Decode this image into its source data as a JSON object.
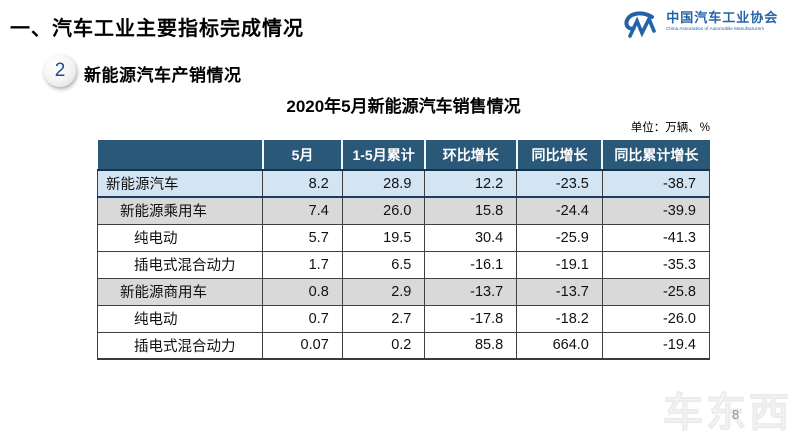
{
  "page": {
    "title": "一、汽车工业主要指标完成情况",
    "section_number": "2",
    "section_title": "新能源汽车产销情况",
    "page_number": "8",
    "watermark": "车东西"
  },
  "logo": {
    "name_cn": "中国汽车工业协会",
    "name_en": "China Association of Automobile Manufacturers",
    "color": "#2563a8"
  },
  "table": {
    "title": "2020年5月新能源汽车销售情况",
    "unit_note": "单位：万辆、%",
    "columns": [
      "",
      "5月",
      "1-5月累计",
      "环比增长",
      "同比增长",
      "同比累计增长"
    ],
    "rows": [
      {
        "label": "新能源汽车",
        "indent": 0,
        "style": "blue",
        "values": [
          "8.2",
          "28.9",
          "12.2",
          "-23.5",
          "-38.7"
        ]
      },
      {
        "label": "新能源乘用车",
        "indent": 1,
        "style": "gray",
        "values": [
          "7.4",
          "26.0",
          "15.8",
          "-24.4",
          "-39.9"
        ]
      },
      {
        "label": "纯电动",
        "indent": 2,
        "style": "white",
        "values": [
          "5.7",
          "19.5",
          "30.4",
          "-25.9",
          "-41.3"
        ]
      },
      {
        "label": "插电式混合动力",
        "indent": 2,
        "style": "white",
        "values": [
          "1.7",
          "6.5",
          "-16.1",
          "-19.1",
          "-35.3"
        ]
      },
      {
        "label": "新能源商用车",
        "indent": 1,
        "style": "gray",
        "values": [
          "0.8",
          "2.9",
          "-13.7",
          "-13.7",
          "-25.8"
        ]
      },
      {
        "label": "纯电动",
        "indent": 2,
        "style": "white",
        "values": [
          "0.7",
          "2.7",
          "-17.8",
          "-18.2",
          "-26.0"
        ]
      },
      {
        "label": "插电式混合动力",
        "indent": 2,
        "style": "white",
        "values": [
          "0.07",
          "0.2",
          "85.8",
          "664.0",
          "-19.4"
        ]
      }
    ],
    "colors": {
      "header_bg": "#2a5879",
      "header_text": "#ffffff",
      "row_blue": "#d3e4f2",
      "row_gray": "#d9d9d9",
      "border_dark": "#1c3c5e"
    }
  }
}
